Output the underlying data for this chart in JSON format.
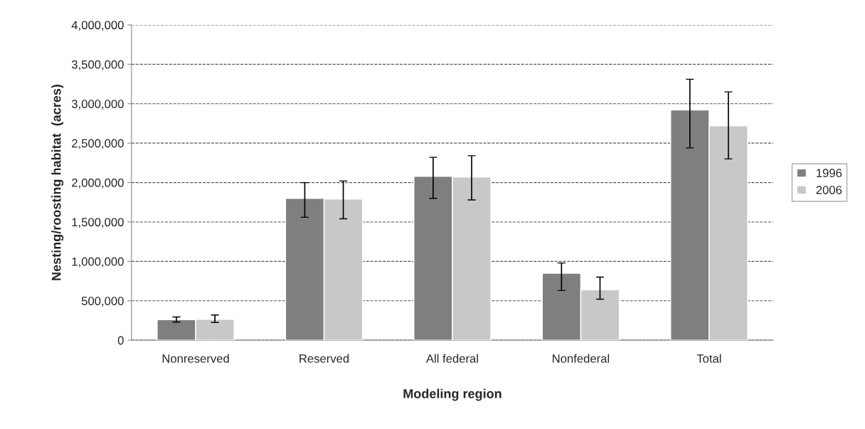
{
  "chart_data": {
    "type": "bar",
    "xlabel": "Modeling region",
    "ylabel": "Nesting/roosting habitat  (acres)",
    "categories": [
      "Nonreserved",
      "Reserved",
      "All federal",
      "Nonfederal",
      "Total"
    ],
    "series": [
      {
        "name": "1996",
        "color": "#7f7f7f",
        "values": [
          260000,
          1800000,
          2080000,
          850000,
          2920000
        ],
        "errors": [
          [
            230000,
            295000
          ],
          [
            1560000,
            2000000
          ],
          [
            1800000,
            2320000
          ],
          [
            630000,
            980000
          ],
          [
            2440000,
            3310000
          ]
        ]
      },
      {
        "name": "2006",
        "color": "#c8c8c8",
        "values": [
          265000,
          1790000,
          2070000,
          640000,
          2720000
        ],
        "errors": [
          [
            225000,
            320000
          ],
          [
            1540000,
            2020000
          ],
          [
            1780000,
            2340000
          ],
          [
            520000,
            800000
          ],
          [
            2300000,
            3150000
          ]
        ]
      }
    ],
    "ylim": [
      0,
      4000000
    ],
    "yticks": [
      {
        "value": 0,
        "label": "0"
      },
      {
        "value": 500000,
        "label": "500,000"
      },
      {
        "value": 1000000,
        "label": "1,000,000"
      },
      {
        "value": 1500000,
        "label": "1,500,000"
      },
      {
        "value": 2000000,
        "label": "2,000,000"
      },
      {
        "value": 2500000,
        "label": "2,500,000"
      },
      {
        "value": 3000000,
        "label": "3,000,000"
      },
      {
        "value": 3500000,
        "label": "3,500,000"
      },
      {
        "value": 4000000,
        "label": "4,000,000"
      }
    ],
    "grid": "y",
    "legend": "right"
  }
}
